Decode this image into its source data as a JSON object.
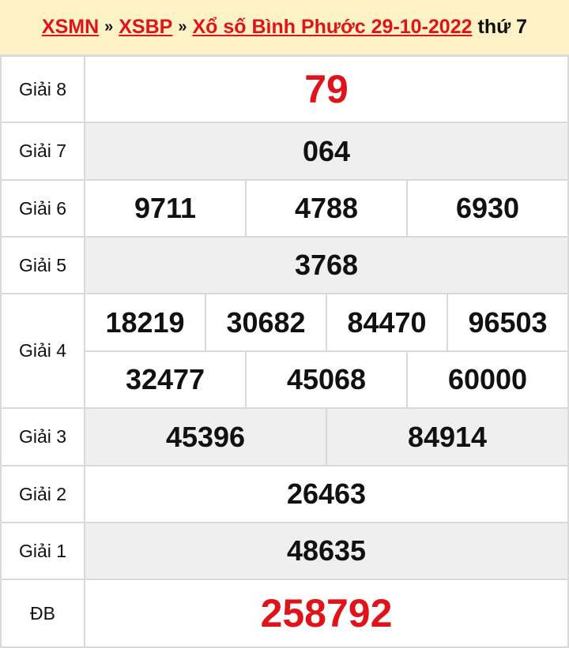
{
  "header": {
    "crumbs": [
      "XSMN",
      "XSBP",
      "Xổ số Bình Phước 29-10-2022"
    ],
    "separator": "»",
    "day": "thứ 7"
  },
  "colors": {
    "accent": "#e1131a",
    "header_bg": "#fcf2c5",
    "alt_row": "#efefef"
  },
  "prizes": [
    {
      "label": "Giải 8",
      "numbers": [
        "79"
      ]
    },
    {
      "label": "Giải 7",
      "numbers": [
        "064"
      ]
    },
    {
      "label": "Giải 6",
      "numbers": [
        "9711",
        "4788",
        "6930"
      ]
    },
    {
      "label": "Giải 5",
      "numbers": [
        "3768"
      ]
    },
    {
      "label": "Giải 4",
      "numbers": [
        "18219",
        "30682",
        "84470",
        "96503",
        "32477",
        "45068",
        "60000"
      ]
    },
    {
      "label": "Giải 3",
      "numbers": [
        "45396",
        "84914"
      ]
    },
    {
      "label": "Giải 2",
      "numbers": [
        "26463"
      ]
    },
    {
      "label": "Giải 1",
      "numbers": [
        "48635"
      ]
    },
    {
      "label": "ĐB",
      "numbers": [
        "258792"
      ]
    }
  ]
}
